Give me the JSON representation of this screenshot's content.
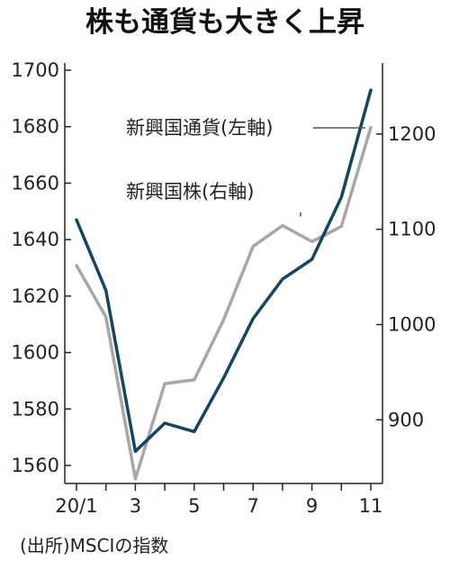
{
  "colors": {
    "currency": "#17445e",
    "stocks": "#a6a6ab",
    "axis": "#222222",
    "leader": "#555555"
  },
  "chart_data": {
    "type": "line",
    "title": "株も通貨も大きく上昇",
    "source": "(出所)MSCIの指数",
    "x": [
      "20/1",
      "2",
      "3",
      "4",
      "5",
      "6",
      "7",
      "8",
      "9",
      "10",
      "11"
    ],
    "x_ticks": [
      "20/1",
      "3",
      "5",
      "7",
      "9",
      "11"
    ],
    "left_axis": {
      "ylim": [
        1560,
        1700
      ],
      "ticks": [
        "1560",
        "1580",
        "1600",
        "1620",
        "1640",
        "1660",
        "1680",
        "1700"
      ]
    },
    "right_axis": {
      "ylim": [
        827.5,
        1267
      ],
      "ticks": [
        "900",
        "1000",
        "1100",
        "1200"
      ]
    },
    "series": [
      {
        "name": "新興国通貨(左軸)",
        "axis": "left",
        "color_key": "currency",
        "values": [
          1647,
          1622,
          1565,
          1575,
          1572,
          1591,
          1612,
          1626,
          1633,
          1655,
          1693
        ]
      },
      {
        "name": "新興国株(右軸)",
        "axis": "right",
        "color_key": "stocks",
        "values": [
          1062,
          1008,
          838,
          938,
          942,
          1005,
          1082,
          1104,
          1087,
          1103,
          1207
        ]
      }
    ]
  }
}
